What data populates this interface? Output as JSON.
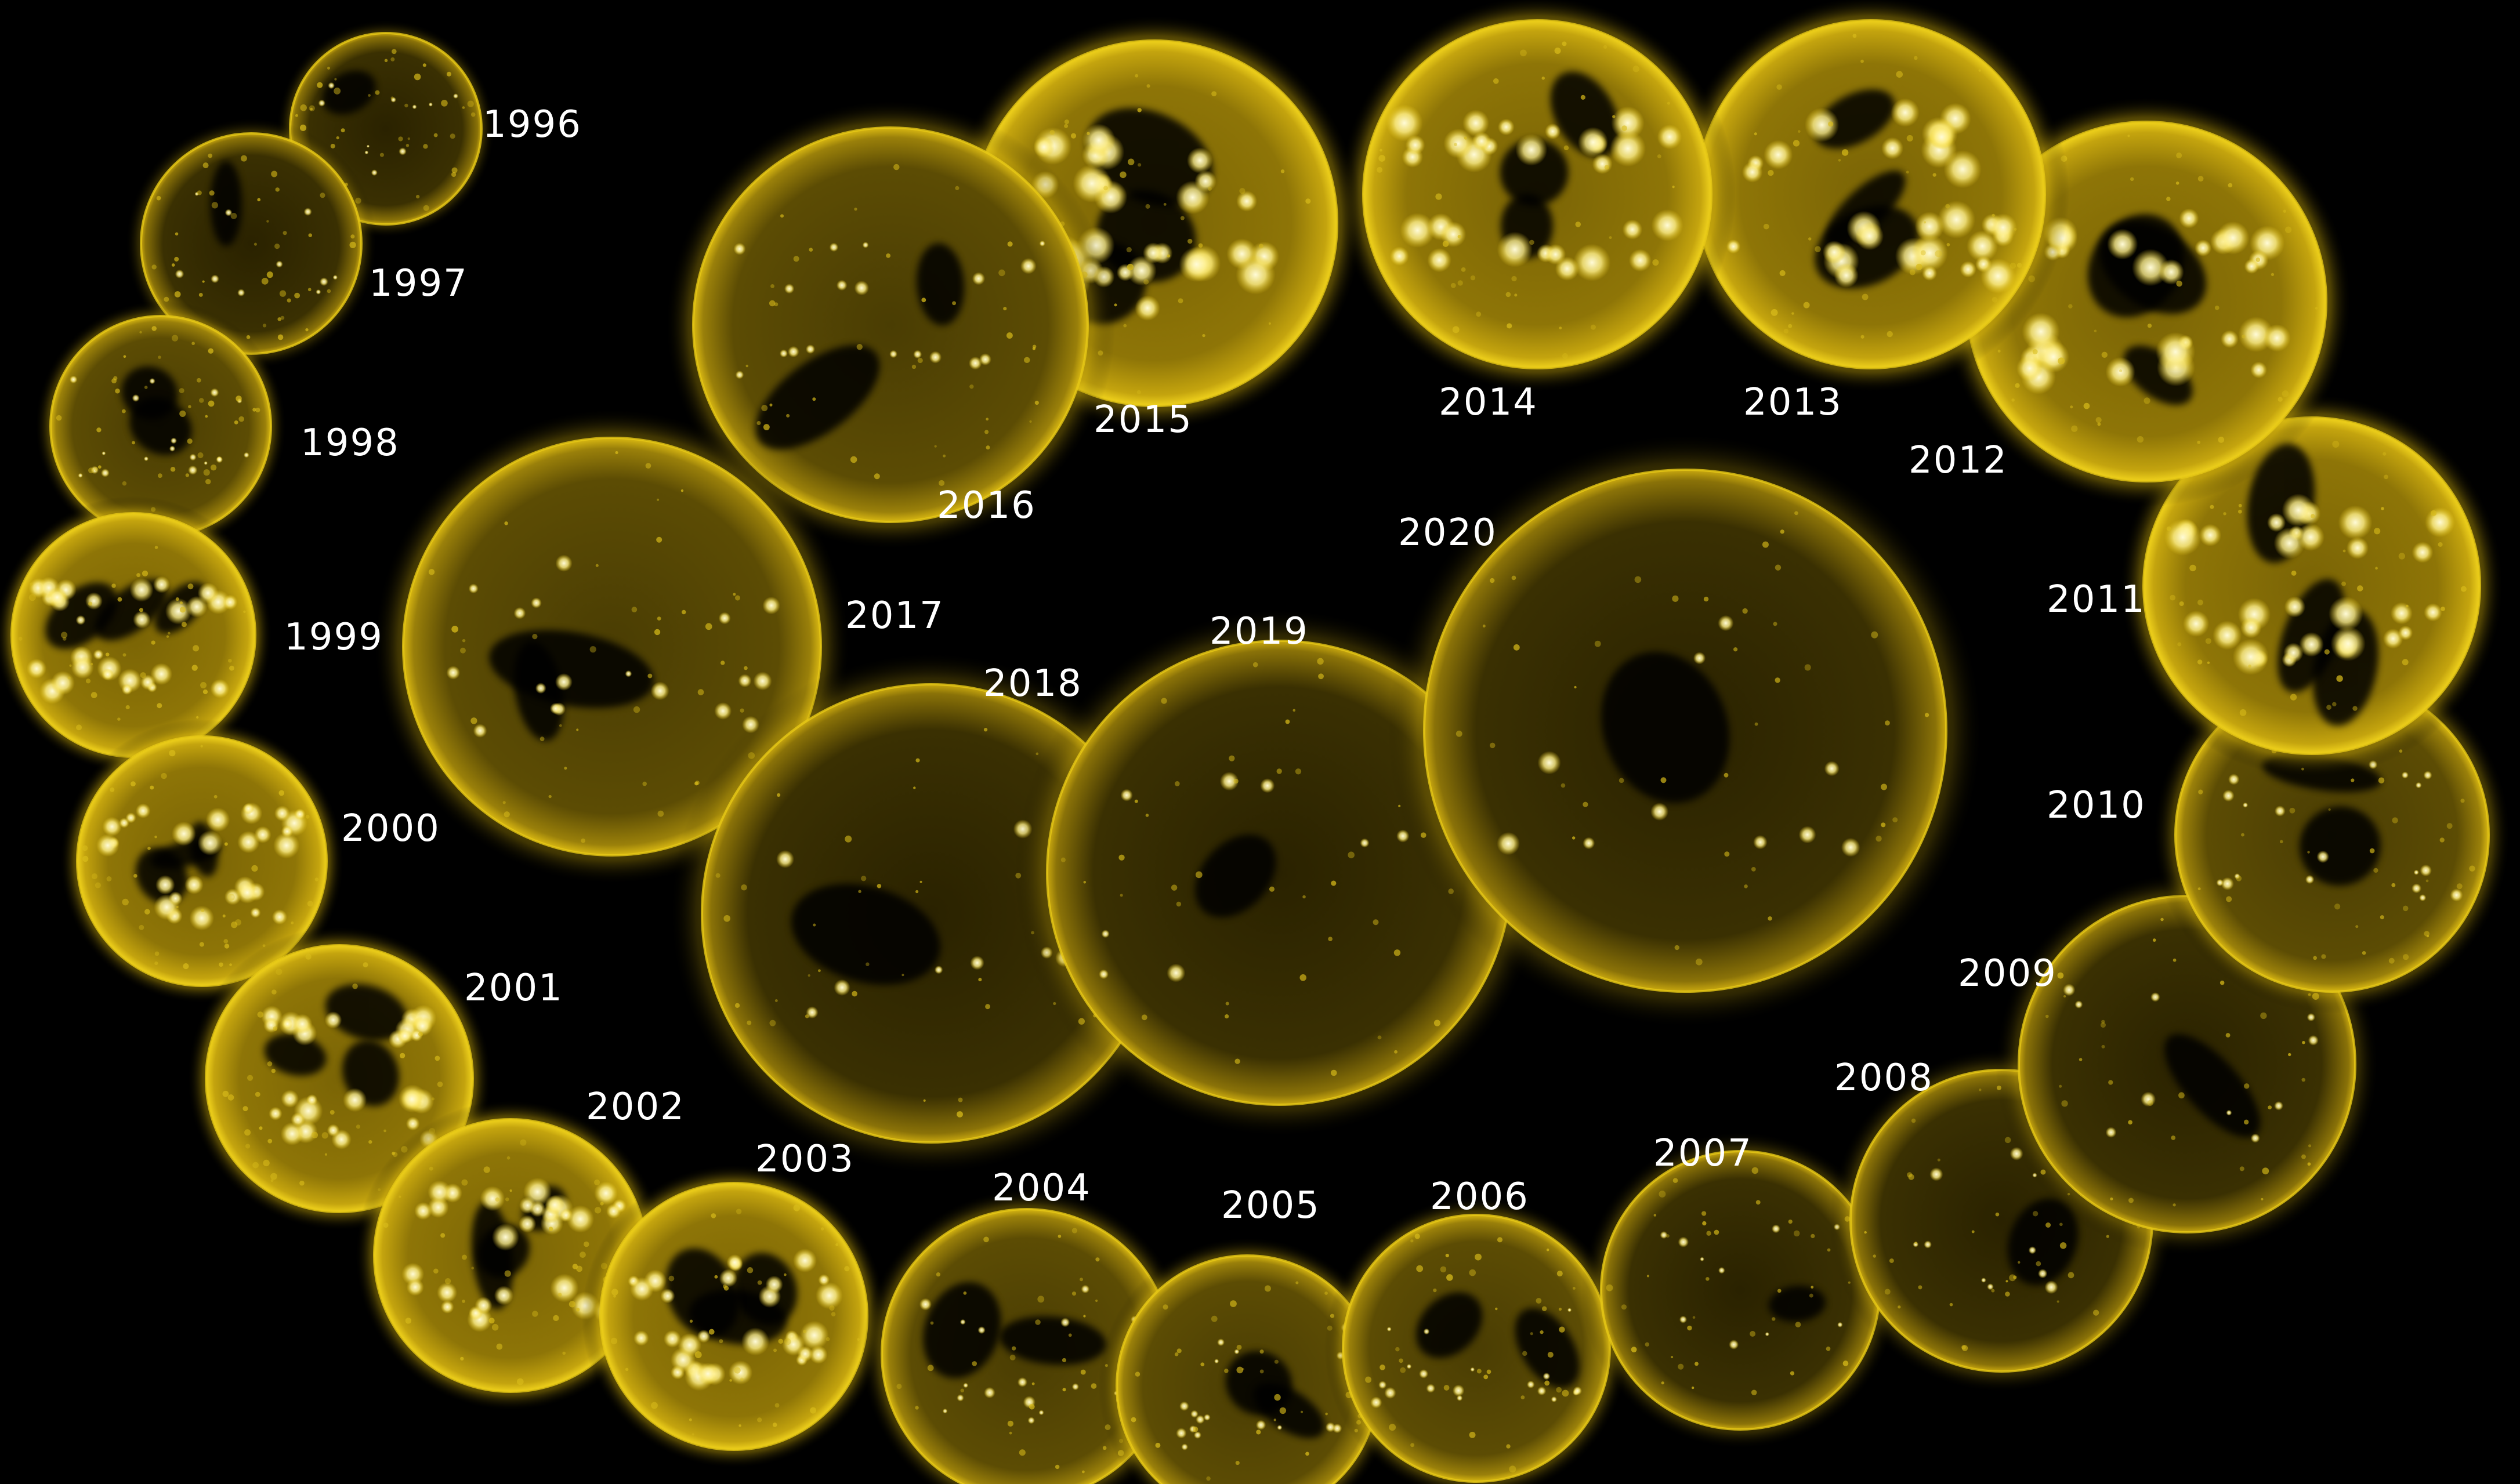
{
  "scene": {
    "background": "#000000",
    "disk_colors": {
      "glow": "#f2d21a",
      "rim": "#c9a80f",
      "body_light": "#7a6405",
      "body_dark": "#1c1600",
      "hotspot": "#fff6a8",
      "coronal_hole": "#050400"
    },
    "label_color": "#ffffff"
  },
  "suns": [
    {
      "year": "1996",
      "activity": "low"
    },
    {
      "year": "1997",
      "activity": "low"
    },
    {
      "year": "1998",
      "activity": "medium"
    },
    {
      "year": "1999",
      "activity": "high"
    },
    {
      "year": "2000",
      "activity": "high"
    },
    {
      "year": "2001",
      "activity": "high"
    },
    {
      "year": "2002",
      "activity": "high"
    },
    {
      "year": "2003",
      "activity": "high"
    },
    {
      "year": "2004",
      "activity": "medium"
    },
    {
      "year": "2005",
      "activity": "medium"
    },
    {
      "year": "2006",
      "activity": "medium"
    },
    {
      "year": "2007",
      "activity": "low"
    },
    {
      "year": "2008",
      "activity": "low"
    },
    {
      "year": "2009",
      "activity": "low"
    },
    {
      "year": "2010",
      "activity": "medium"
    },
    {
      "year": "2011",
      "activity": "high"
    },
    {
      "year": "2012",
      "activity": "high"
    },
    {
      "year": "2013",
      "activity": "high"
    },
    {
      "year": "2014",
      "activity": "high"
    },
    {
      "year": "2015",
      "activity": "high"
    },
    {
      "year": "2016",
      "activity": "medium"
    },
    {
      "year": "2017",
      "activity": "medium"
    },
    {
      "year": "2018",
      "activity": "low"
    },
    {
      "year": "2019",
      "activity": "low"
    },
    {
      "year": "2020",
      "activity": "low"
    }
  ]
}
